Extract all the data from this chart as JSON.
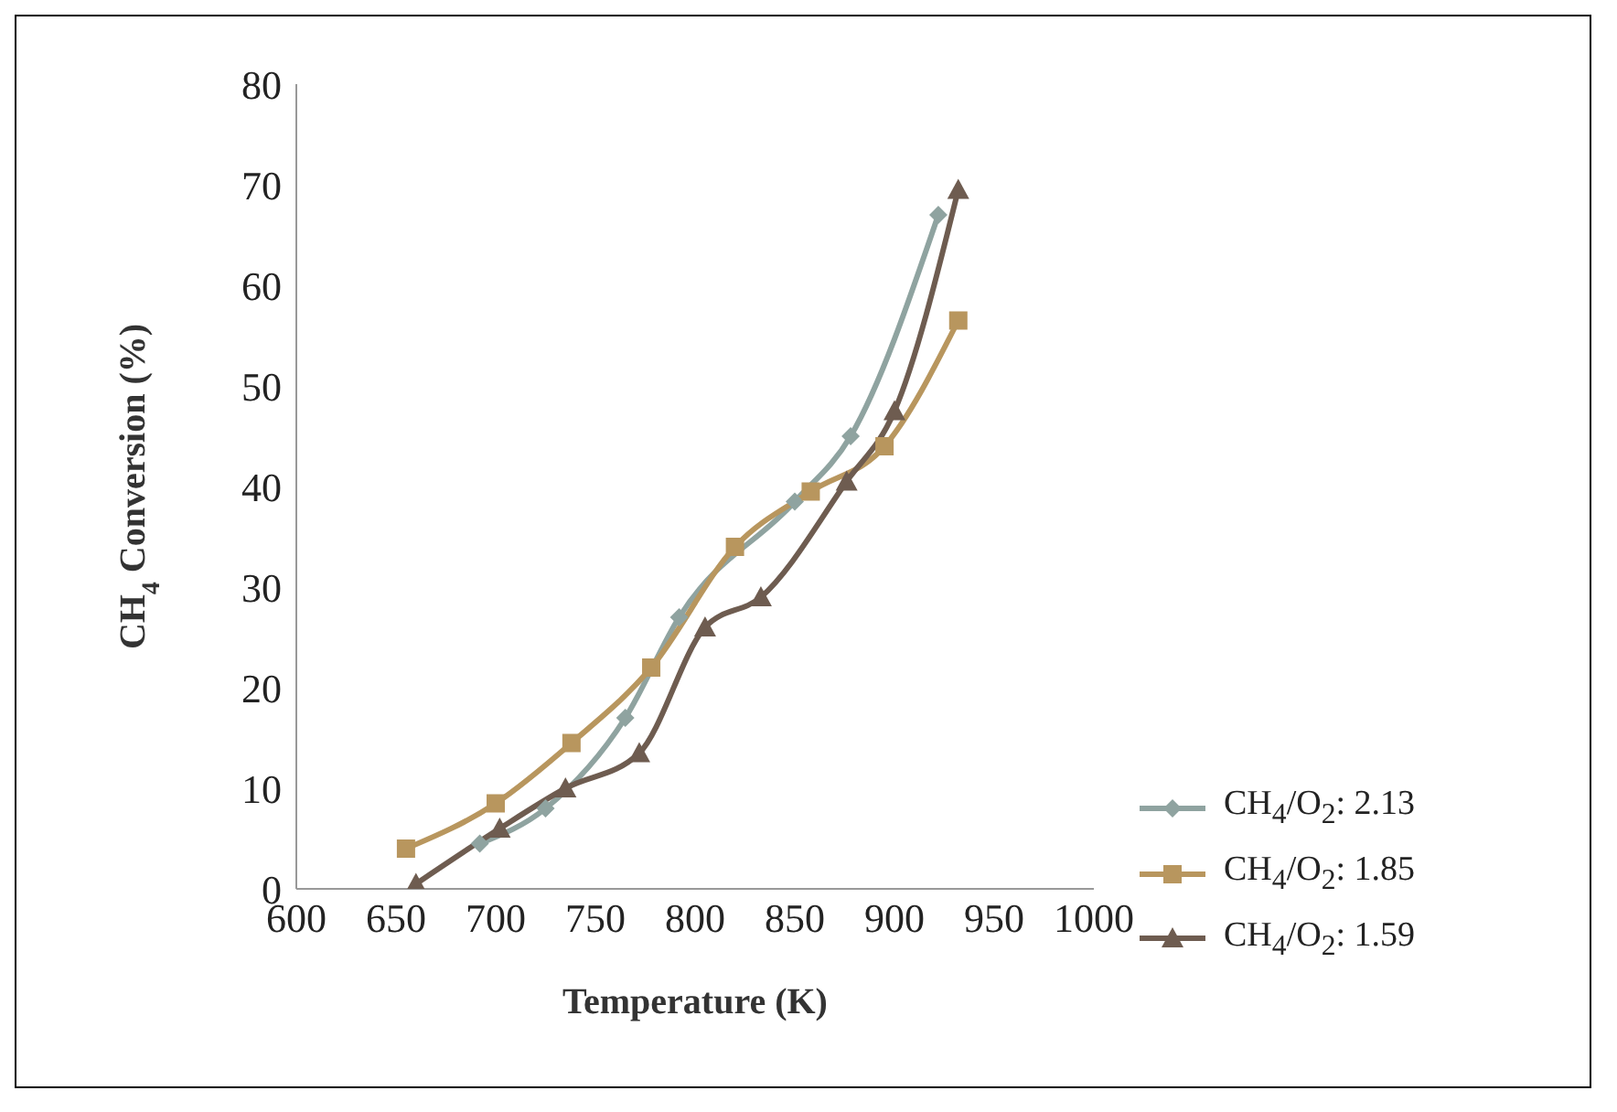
{
  "chart_data": {
    "type": "line",
    "xlabel": "Temperature (K)",
    "ylabel": "CH$_{4}$ Conversion (%)",
    "xlim": [
      600,
      1000
    ],
    "xticks": [
      600,
      650,
      700,
      750,
      800,
      850,
      900,
      950,
      1000
    ],
    "ylim": [
      0,
      80
    ],
    "yticks": [
      0,
      10,
      20,
      30,
      40,
      50,
      60,
      70,
      80
    ],
    "legend": "right",
    "series": [
      {
        "name": "CH$_{4}$/O$_{2}$: 2.13",
        "color": "#8fa3a0",
        "marker": "diamond",
        "x": [
          692,
          725,
          765,
          792,
          850,
          878,
          922
        ],
        "values": [
          4.5,
          8,
          17,
          27,
          38.5,
          45,
          67
        ]
      },
      {
        "name": "CH$_{4}$/O$_{2}$: 1.85",
        "color": "#b8965e",
        "marker": "square",
        "x": [
          655,
          700,
          738,
          778,
          820,
          858,
          895,
          932
        ],
        "values": [
          4,
          8.5,
          14.5,
          22,
          34,
          39.5,
          44,
          56.5
        ]
      },
      {
        "name": "CH$_{4}$/O$_{2}$: 1.59",
        "color": "#6e5c50",
        "marker": "triangle",
        "x": [
          660,
          702,
          735,
          772,
          805,
          833,
          876,
          900,
          932
        ],
        "values": [
          0.5,
          6,
          10,
          13.5,
          26,
          29,
          40.5,
          47.5,
          69.5
        ]
      }
    ]
  }
}
